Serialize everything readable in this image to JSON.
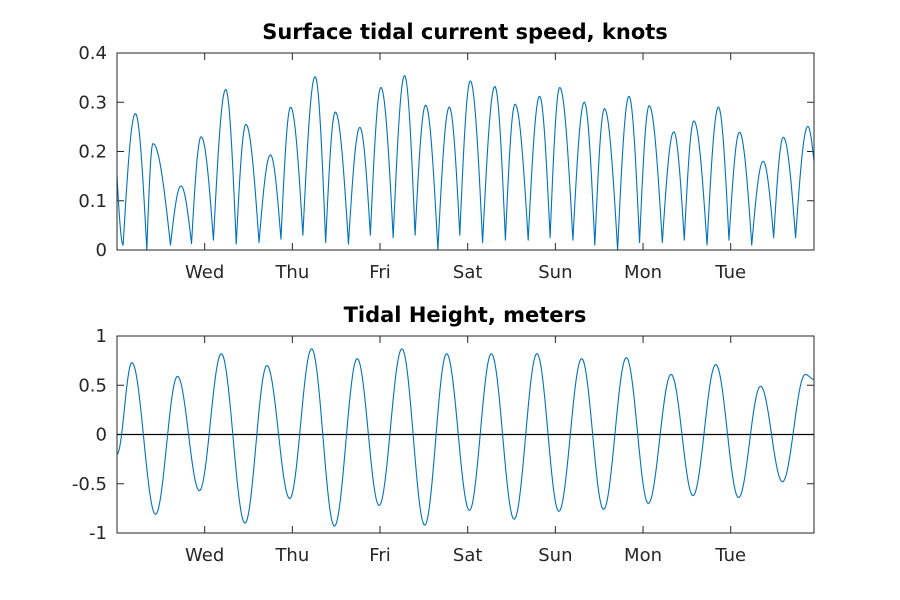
{
  "chart_data": [
    {
      "type": "line",
      "title": "Surface tidal current speed, knots",
      "xlabel": "",
      "ylabel": "",
      "x_ticks": [
        "Wed",
        "Thu",
        "Fri",
        "Sat",
        "Sun",
        "Mon",
        "Tue"
      ],
      "xlim_days": [
        0,
        7.95
      ],
      "ylim": [
        0,
        0.4
      ],
      "y_ticks": [
        "0",
        "0.1",
        "0.2",
        "0.3",
        "0.4"
      ],
      "grid": false,
      "color": "#0072BD",
      "series": [
        {
          "peaks": [
            {
              "x": 0.21,
              "y": 0.277
            },
            {
              "x": 0.41,
              "y": 0.216
            },
            {
              "x": 0.73,
              "y": 0.13
            },
            {
              "x": 0.96,
              "y": 0.23
            },
            {
              "x": 1.24,
              "y": 0.326
            },
            {
              "x": 1.47,
              "y": 0.255
            },
            {
              "x": 1.75,
              "y": 0.193
            },
            {
              "x": 1.98,
              "y": 0.29
            },
            {
              "x": 2.26,
              "y": 0.352
            },
            {
              "x": 2.49,
              "y": 0.28
            },
            {
              "x": 2.77,
              "y": 0.249
            },
            {
              "x": 3.01,
              "y": 0.33
            },
            {
              "x": 3.28,
              "y": 0.354
            },
            {
              "x": 3.52,
              "y": 0.294
            },
            {
              "x": 3.79,
              "y": 0.29
            },
            {
              "x": 4.03,
              "y": 0.343
            },
            {
              "x": 4.31,
              "y": 0.332
            },
            {
              "x": 4.54,
              "y": 0.296
            },
            {
              "x": 4.82,
              "y": 0.312
            },
            {
              "x": 5.05,
              "y": 0.33
            },
            {
              "x": 5.33,
              "y": 0.3
            },
            {
              "x": 5.56,
              "y": 0.287
            },
            {
              "x": 5.84,
              "y": 0.312
            },
            {
              "x": 6.07,
              "y": 0.293
            },
            {
              "x": 6.35,
              "y": 0.24
            },
            {
              "x": 6.58,
              "y": 0.262
            },
            {
              "x": 6.86,
              "y": 0.29
            },
            {
              "x": 7.1,
              "y": 0.239
            },
            {
              "x": 7.37,
              "y": 0.18
            },
            {
              "x": 7.6,
              "y": 0.229
            },
            {
              "x": 7.88,
              "y": 0.251
            }
          ],
          "troughs": [
            {
              "x": 0.07,
              "y": 0.01
            },
            {
              "x": 0.34,
              "y": 0.0
            },
            {
              "x": 0.61,
              "y": 0.01
            },
            {
              "x": 0.85,
              "y": 0.013
            },
            {
              "x": 1.1,
              "y": 0.02
            },
            {
              "x": 1.36,
              "y": 0.012
            },
            {
              "x": 1.62,
              "y": 0.015
            },
            {
              "x": 1.87,
              "y": 0.022
            },
            {
              "x": 2.12,
              "y": 0.03
            },
            {
              "x": 2.38,
              "y": 0.015
            },
            {
              "x": 2.64,
              "y": 0.012
            },
            {
              "x": 2.89,
              "y": 0.03
            },
            {
              "x": 3.15,
              "y": 0.025
            },
            {
              "x": 3.4,
              "y": 0.03
            },
            {
              "x": 3.66,
              "y": 0.0
            },
            {
              "x": 3.91,
              "y": 0.03
            },
            {
              "x": 4.17,
              "y": 0.015
            },
            {
              "x": 4.43,
              "y": 0.02
            },
            {
              "x": 4.69,
              "y": 0.02
            },
            {
              "x": 4.94,
              "y": 0.025
            },
            {
              "x": 5.2,
              "y": 0.02
            },
            {
              "x": 5.45,
              "y": 0.01
            },
            {
              "x": 5.71,
              "y": 0.0
            },
            {
              "x": 5.96,
              "y": 0.015
            },
            {
              "x": 6.22,
              "y": 0.015
            },
            {
              "x": 6.47,
              "y": 0.02
            },
            {
              "x": 6.73,
              "y": 0.01
            },
            {
              "x": 6.98,
              "y": 0.02
            },
            {
              "x": 7.24,
              "y": 0.01
            },
            {
              "x": 7.49,
              "y": 0.025
            },
            {
              "x": 7.74,
              "y": 0.025
            }
          ],
          "start_value": 0.15,
          "end_value": 0.18
        }
      ]
    },
    {
      "type": "line",
      "title": "Tidal Height, meters",
      "xlabel": "",
      "ylabel": "",
      "x_ticks": [
        "Wed",
        "Thu",
        "Fri",
        "Sat",
        "Sun",
        "Mon",
        "Tue"
      ],
      "xlim_days": [
        0,
        7.95
      ],
      "ylim": [
        -1,
        1
      ],
      "y_ticks": [
        "-1",
        "-0.5",
        "0",
        "0.5",
        "1"
      ],
      "grid": false,
      "zero_line": true,
      "color": "#0072BD",
      "series": [
        {
          "extrema": [
            {
              "x": 0.0,
              "y": -0.2
            },
            {
              "x": 0.17,
              "y": 0.73
            },
            {
              "x": 0.44,
              "y": -0.81
            },
            {
              "x": 0.69,
              "y": 0.59
            },
            {
              "x": 0.94,
              "y": -0.57
            },
            {
              "x": 1.19,
              "y": 0.82
            },
            {
              "x": 1.46,
              "y": -0.9
            },
            {
              "x": 1.71,
              "y": 0.7
            },
            {
              "x": 1.97,
              "y": -0.65
            },
            {
              "x": 2.22,
              "y": 0.87
            },
            {
              "x": 2.48,
              "y": -0.93
            },
            {
              "x": 2.74,
              "y": 0.77
            },
            {
              "x": 2.99,
              "y": -0.72
            },
            {
              "x": 3.25,
              "y": 0.87
            },
            {
              "x": 3.51,
              "y": -0.92
            },
            {
              "x": 3.76,
              "y": 0.82
            },
            {
              "x": 4.02,
              "y": -0.77
            },
            {
              "x": 4.27,
              "y": 0.82
            },
            {
              "x": 4.53,
              "y": -0.86
            },
            {
              "x": 4.79,
              "y": 0.82
            },
            {
              "x": 5.04,
              "y": -0.78
            },
            {
              "x": 5.3,
              "y": 0.77
            },
            {
              "x": 5.55,
              "y": -0.76
            },
            {
              "x": 5.81,
              "y": 0.78
            },
            {
              "x": 6.06,
              "y": -0.7
            },
            {
              "x": 6.32,
              "y": 0.61
            },
            {
              "x": 6.57,
              "y": -0.62
            },
            {
              "x": 6.83,
              "y": 0.71
            },
            {
              "x": 7.09,
              "y": -0.64
            },
            {
              "x": 7.34,
              "y": 0.49
            },
            {
              "x": 7.59,
              "y": -0.48
            },
            {
              "x": 7.85,
              "y": 0.61
            },
            {
              "x": 7.95,
              "y": 0.56
            }
          ]
        }
      ]
    }
  ]
}
